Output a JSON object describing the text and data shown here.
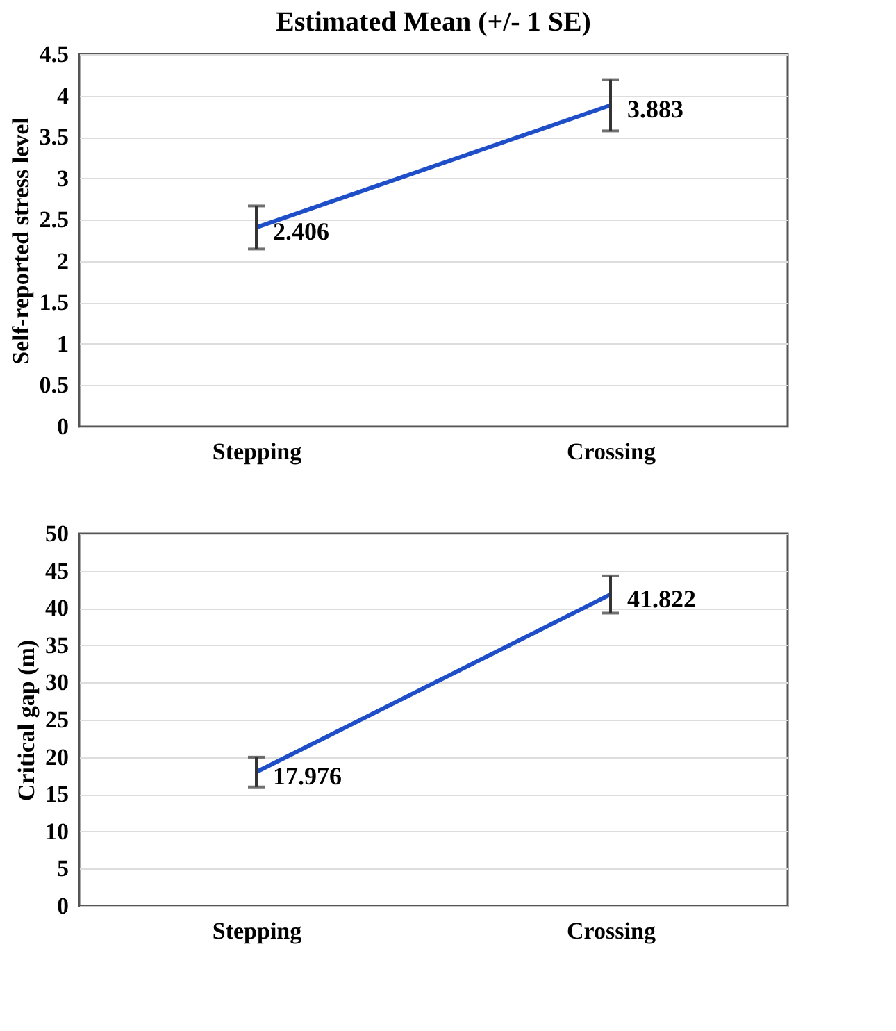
{
  "chart_data": [
    {
      "type": "line",
      "title": "Estimated Mean (+/- 1 SE)",
      "ylabel": "Self-reported stress level",
      "categories": [
        "Stepping",
        "Crossing"
      ],
      "series": [
        {
          "color": "#1f4fc8",
          "values": [
            2.406,
            3.883
          ],
          "errors": [
            0.26,
            0.31
          ]
        }
      ],
      "ylim": [
        0,
        4.5
      ],
      "yticks": [
        0,
        0.5,
        1,
        1.5,
        2,
        2.5,
        3,
        3.5,
        4,
        4.5
      ],
      "grid": "y",
      "data_labels": true,
      "legend": false,
      "marker": "none"
    },
    {
      "type": "line",
      "ylabel": "Critical gap (m)",
      "categories": [
        "Stepping",
        "Crossing"
      ],
      "series": [
        {
          "color": "#1f4fc8",
          "values": [
            17.976,
            41.822
          ],
          "errors": [
            2.0,
            2.5
          ]
        }
      ],
      "ylim": [
        0,
        50
      ],
      "yticks": [
        0,
        5,
        10,
        15,
        20,
        25,
        30,
        35,
        40,
        45,
        50
      ],
      "grid": "y",
      "data_labels": true,
      "legend": false,
      "marker": "none"
    }
  ]
}
